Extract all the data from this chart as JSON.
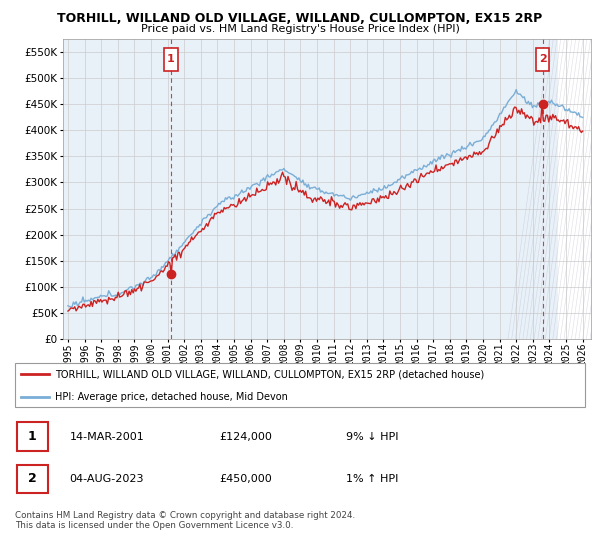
{
  "title": "TORHILL, WILLAND OLD VILLAGE, WILLAND, CULLOMPTON, EX15 2RP",
  "subtitle": "Price paid vs. HM Land Registry's House Price Index (HPI)",
  "ytick_values": [
    0,
    50000,
    100000,
    150000,
    200000,
    250000,
    300000,
    350000,
    400000,
    450000,
    500000,
    550000
  ],
  "ylim": [
    0,
    575000
  ],
  "xlim_start": 1994.7,
  "xlim_end": 2026.5,
  "hpi_color": "#7aaed6",
  "sale_color": "#cc2222",
  "sale1_x": 2001.2,
  "sale1_y": 124000,
  "sale2_x": 2023.58,
  "sale2_y": 450000,
  "annotation1_label": "1",
  "annotation2_label": "2",
  "legend_sale_label": "TORHILL, WILLAND OLD VILLAGE, WILLAND, CULLOMPTON, EX15 2RP (detached house)",
  "legend_hpi_label": "HPI: Average price, detached house, Mid Devon",
  "table_row1": [
    "1",
    "14-MAR-2001",
    "£124,000",
    "9% ↓ HPI"
  ],
  "table_row2": [
    "2",
    "04-AUG-2023",
    "£450,000",
    "1% ↑ HPI"
  ],
  "footnote": "Contains HM Land Registry data © Crown copyright and database right 2024.\nThis data is licensed under the Open Government Licence v3.0.",
  "grid_color": "#cccccc",
  "chart_bg": "#e8f0f8",
  "hatch_start": 2024.5
}
